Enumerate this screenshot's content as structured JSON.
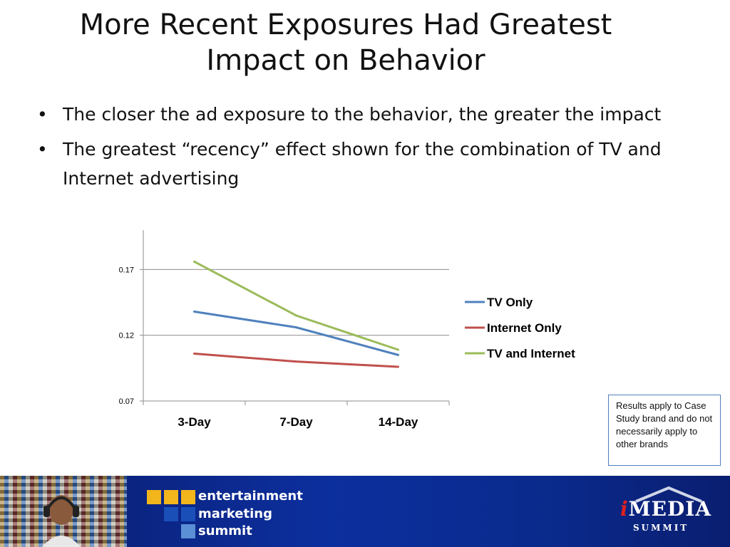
{
  "slide": {
    "title_line1": "More Recent Exposures Had Greatest",
    "title_line2": "Impact on Behavior",
    "bullets": [
      "The closer the ad exposure to the behavior, the greater the impact",
      "The greatest “recency” effect shown for the combination of TV and Internet advertising"
    ],
    "note": "Results apply to Case Study brand and do not necessarily apply to other brands"
  },
  "chart_data": {
    "type": "line",
    "categories": [
      "3-Day",
      "7-Day",
      "14-Day"
    ],
    "series": [
      {
        "name": "TV Only",
        "values": [
          0.138,
          0.126,
          0.105
        ],
        "color": "#4f81bd"
      },
      {
        "name": "Internet Only",
        "values": [
          0.106,
          0.1,
          0.096
        ],
        "color": "#c0504d"
      },
      {
        "name": "TV and Internet",
        "values": [
          0.176,
          0.135,
          0.109
        ],
        "color": "#9bbb59"
      }
    ],
    "yticks": [
      0.07,
      0.12,
      0.17
    ],
    "ylim": [
      0.07,
      0.2
    ],
    "grid": true,
    "legend": "right",
    "title": "",
    "xlabel": "",
    "ylabel": ""
  },
  "footer": {
    "brand_line1": "entertainment",
    "brand_line2": "marketing",
    "brand_line3": "summit",
    "logo_main": "MEDIA",
    "logo_i": "i",
    "logo_sub": "SUMMIT",
    "colors": {
      "band": "#0c2f9e",
      "square_yellow": "#f2b51c",
      "square_blue": "#1a4fb8",
      "square_light": "#5b8fd6"
    }
  }
}
